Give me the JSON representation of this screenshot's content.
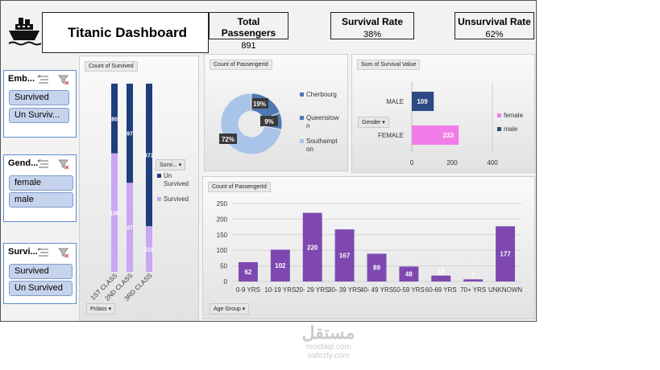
{
  "header": {
    "title": "Titanic Dashboard",
    "logo_icon": "ship-icon",
    "kpis": [
      {
        "label": "Total Passengers",
        "value": "891"
      },
      {
        "label": "Survival Rate",
        "value": "38%"
      },
      {
        "label": "Unsurvival Rate",
        "value": "62%"
      }
    ]
  },
  "slicers": [
    {
      "title": "Emb...",
      "items": [
        "Survived",
        "Un Surviv..."
      ]
    },
    {
      "title": "Gend...",
      "items": [
        "female",
        "male"
      ]
    },
    {
      "title": "Survi...",
      "items": [
        "Survived",
        "Un Survived"
      ]
    }
  ],
  "colors": {
    "dark_blue": "#1f3e7c",
    "light_purple": "#c9a7f2",
    "pie_light": "#a8c4e8",
    "pie_dark": "#4f78b5",
    "pink": "#f07ce8",
    "navy": "#2c4b82",
    "purple": "#7e48b0"
  },
  "chart_data": [
    {
      "type": "bar",
      "title": "Count of Survived",
      "stacked": true,
      "categories": [
        "1ST CLASS",
        "2ND CLASS",
        "3RD CLASS"
      ],
      "series": [
        {
          "name": "Un Survived",
          "values": [
            80,
            97,
            372
          ],
          "labels": [
            "80",
            "97",
            "372"
          ]
        },
        {
          "name": "Survived",
          "values": [
            136,
            87,
            119
          ],
          "labels": [
            "136",
            "87",
            "119"
          ]
        }
      ],
      "field_buttons": {
        "axis": "Pclass",
        "legend": "Survi..."
      },
      "legend_position": "right"
    },
    {
      "type": "pie",
      "title": "Count of PassengerId",
      "donut": true,
      "categories": [
        "Cherbourg",
        "Queenstown",
        "Southampton"
      ],
      "legend_labels": [
        "Cherbourg",
        "Queenstow n",
        "Southampt on"
      ],
      "values": [
        19,
        9,
        72
      ],
      "labels": [
        "19%",
        "9%",
        "72%"
      ],
      "legend_position": "right"
    },
    {
      "type": "bar",
      "orientation": "horizontal",
      "title": "Sum of Survival Value",
      "categories": [
        "MALE",
        "FEMALE"
      ],
      "series": [
        {
          "name": "female",
          "values": [
            null,
            233
          ]
        },
        {
          "name": "male",
          "values": [
            109,
            null
          ]
        }
      ],
      "labels": [
        "109",
        "233"
      ],
      "xlim": [
        0,
        400
      ],
      "xticks": [
        "0",
        "200",
        "400"
      ],
      "field_buttons": {
        "axis": "Gender"
      },
      "legend_position": "right"
    },
    {
      "type": "bar",
      "title": "Count of PassengerId",
      "categories": [
        "0-9 YRS",
        "10-19 YRS",
        "20- 29 YRS",
        "30- 39 YRS",
        "40- 49 YRS",
        "50-59 YRS",
        "60-69 YRS",
        "70+ YRS",
        "UNKNOWN"
      ],
      "values": [
        62,
        102,
        220,
        167,
        89,
        48,
        19,
        7,
        177
      ],
      "labels": [
        "62",
        "102",
        "220",
        "167",
        "89",
        "48",
        "19",
        "7",
        "177"
      ],
      "ylim": [
        0,
        250
      ],
      "yticks": [
        "0",
        "50",
        "100",
        "150",
        "200",
        "250"
      ],
      "field_buttons": {
        "axis": "Age Group"
      }
    }
  ],
  "watermark": {
    "line1": "مستقل",
    "line2": "mostaql.com",
    "line3": "nafezly.com"
  }
}
